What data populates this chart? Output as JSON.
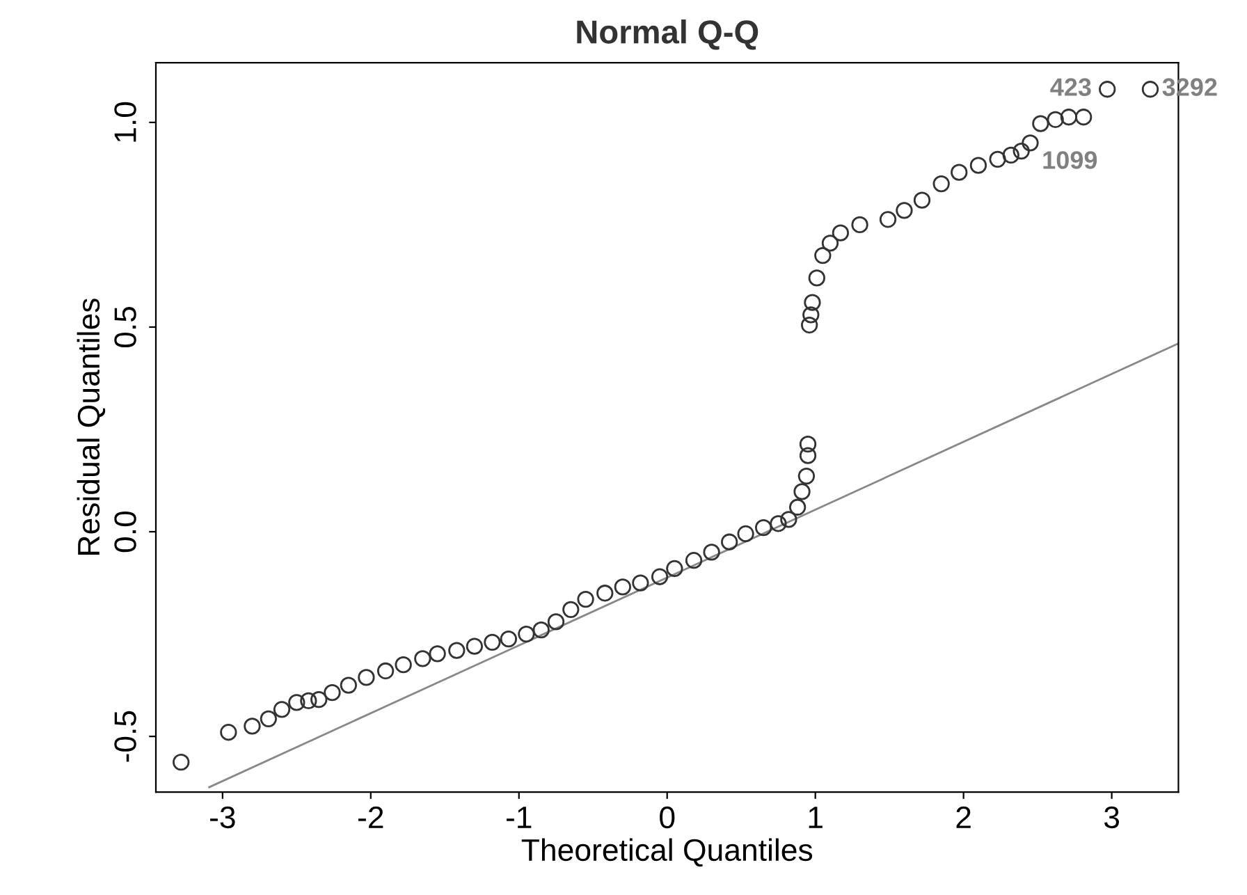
{
  "chart_data": {
    "type": "scatter",
    "title": "Normal Q-Q",
    "xlabel": "Theoretical Quantiles",
    "ylabel": "Residual Quantiles",
    "xlim": [
      -3.45,
      3.45
    ],
    "ylim": [
      -0.636,
      1.146
    ],
    "xticks": [
      -3,
      -2,
      -1,
      0,
      1,
      2,
      3
    ],
    "yticks": [
      {
        "value": -0.5,
        "label": "-0.5"
      },
      {
        "value": 0,
        "label": "0.0"
      },
      {
        "value": 0.5,
        "label": "0.5"
      },
      {
        "value": 1,
        "label": "1.0"
      }
    ],
    "grid": false,
    "legend": false,
    "marker": "circle",
    "series": [
      {
        "color": "#333333",
        "x": [
          -3.28,
          -2.96,
          -2.8,
          -2.69,
          -2.6,
          -2.5,
          -2.42,
          -2.35,
          -2.26,
          -2.15,
          -2.03,
          -1.9,
          -1.78,
          -1.65,
          -1.55,
          -1.42,
          -1.3,
          -1.18,
          -1.07,
          -0.95,
          -0.85,
          -0.75,
          -0.65,
          -0.55,
          -0.42,
          -0.3,
          -0.18,
          -0.05,
          0.05,
          0.18,
          0.3,
          0.42,
          0.53,
          0.65,
          0.75,
          0.82,
          0.88,
          0.91,
          0.94,
          0.95,
          0.95,
          0.96,
          0.97,
          0.98,
          1.01,
          1.05,
          1.1,
          1.17,
          1.3,
          1.49,
          1.6,
          1.72,
          1.85,
          1.97,
          2.1,
          2.23,
          2.32,
          2.39,
          2.45,
          2.52,
          2.62,
          2.71,
          2.81,
          2.97,
          3.26
        ],
        "values": [
          -0.563,
          -0.49,
          -0.475,
          -0.457,
          -0.434,
          -0.417,
          -0.413,
          -0.41,
          -0.393,
          -0.375,
          -0.356,
          -0.34,
          -0.325,
          -0.31,
          -0.298,
          -0.29,
          -0.28,
          -0.27,
          -0.262,
          -0.25,
          -0.24,
          -0.22,
          -0.19,
          -0.165,
          -0.15,
          -0.135,
          -0.125,
          -0.11,
          -0.09,
          -0.07,
          -0.05,
          -0.025,
          -0.005,
          0.01,
          0.02,
          0.03,
          0.06,
          0.098,
          0.136,
          0.186,
          0.214,
          0.505,
          0.53,
          0.56,
          0.62,
          0.675,
          0.705,
          0.73,
          0.75,
          0.763,
          0.785,
          0.81,
          0.85,
          0.878,
          0.895,
          0.91,
          0.92,
          0.93,
          0.95,
          0.997,
          1.007,
          1.013,
          1.013,
          1.081,
          1.081
        ]
      },
      {
        "type": "line",
        "color": "#888888",
        "marker": "none",
        "x": [
          -3.09,
          3.45
        ],
        "values": [
          -0.624,
          0.46
        ]
      }
    ],
    "annotations": [
      {
        "text": "423",
        "x": 2.97,
        "y": 1.081
      },
      {
        "text": "3292",
        "x": 3.26,
        "y": 1.081
      },
      {
        "text": "1099",
        "x": 2.45,
        "y": 0.95
      }
    ]
  }
}
